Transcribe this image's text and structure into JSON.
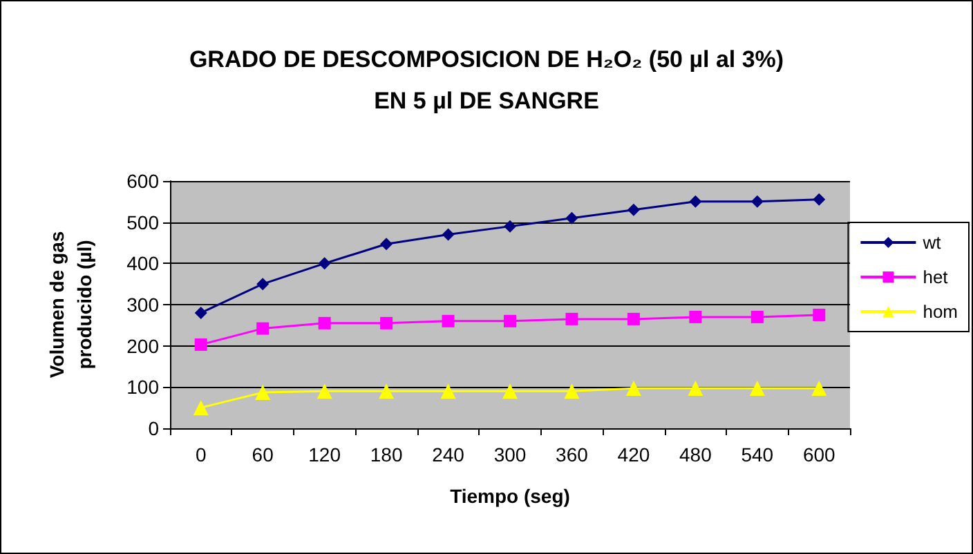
{
  "chart_data": {
    "type": "line",
    "title": "GRADO DE DESCOMPOSICION DE H₂O₂ (50 µl al 3%)\nEN 5 µl DE SANGRE",
    "xlabel": "Tiempo (seg)",
    "ylabel": "Volumen de gas\nproducido (µl)",
    "categories": [
      "0",
      "60",
      "120",
      "180",
      "240",
      "300",
      "360",
      "420",
      "480",
      "540",
      "600"
    ],
    "series": [
      {
        "name": "wt",
        "color": "#000080",
        "marker": "diamond",
        "values": [
          280,
          350,
          400,
          447,
          470,
          490,
          510,
          530,
          550,
          550,
          555
        ]
      },
      {
        "name": "het",
        "color": "#ff00ff",
        "marker": "square",
        "values": [
          203,
          242,
          255,
          255,
          260,
          260,
          265,
          265,
          270,
          270,
          275
        ]
      },
      {
        "name": "hom",
        "color": "#ffff00",
        "marker": "triangle",
        "values": [
          50,
          87,
          90,
          90,
          90,
          90,
          90,
          97,
          97,
          97,
          97
        ]
      }
    ],
    "ylim": [
      0,
      600
    ],
    "yticks": [
      0,
      100,
      200,
      300,
      400,
      500,
      600
    ],
    "grid": "y",
    "legend": "right"
  }
}
